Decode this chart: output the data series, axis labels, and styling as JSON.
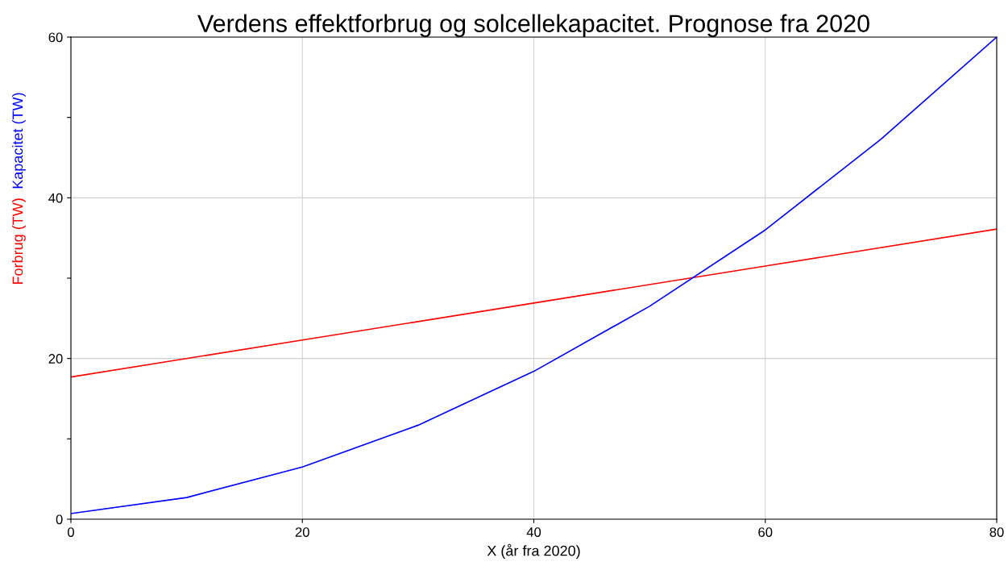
{
  "chart_data": {
    "type": "line",
    "title": "Verdens effektforbrug og solcellekapacitet. Prognose fra 2020",
    "xlabel": "X (år fra 2020)",
    "series": [
      {
        "name": "Forbrug (TW)",
        "color": "#ff0000",
        "x": [
          0,
          20,
          40,
          60,
          80
        ],
        "values": [
          17.7,
          22.3,
          26.9,
          31.5,
          36.1
        ]
      },
      {
        "name": "Kapacitet (TW)",
        "color": "#0000ff",
        "x": [
          0,
          10,
          20,
          30,
          40,
          50,
          60,
          70,
          80
        ],
        "values": [
          0.7,
          2.7,
          6.5,
          11.7,
          18.4,
          26.5,
          36.0,
          47.3,
          60.0
        ]
      }
    ],
    "xlim": [
      0,
      80
    ],
    "ylim": [
      0,
      60
    ],
    "xticks": [
      0,
      20,
      40,
      60,
      80
    ],
    "yticks": [
      0,
      {
        "value": 10,
        "label": null
      },
      20,
      {
        "value": 30,
        "label": null
      },
      40,
      {
        "value": 50,
        "label": null
      },
      60
    ],
    "grid": true,
    "legend": false,
    "marker": "none",
    "line_style": "solid"
  }
}
